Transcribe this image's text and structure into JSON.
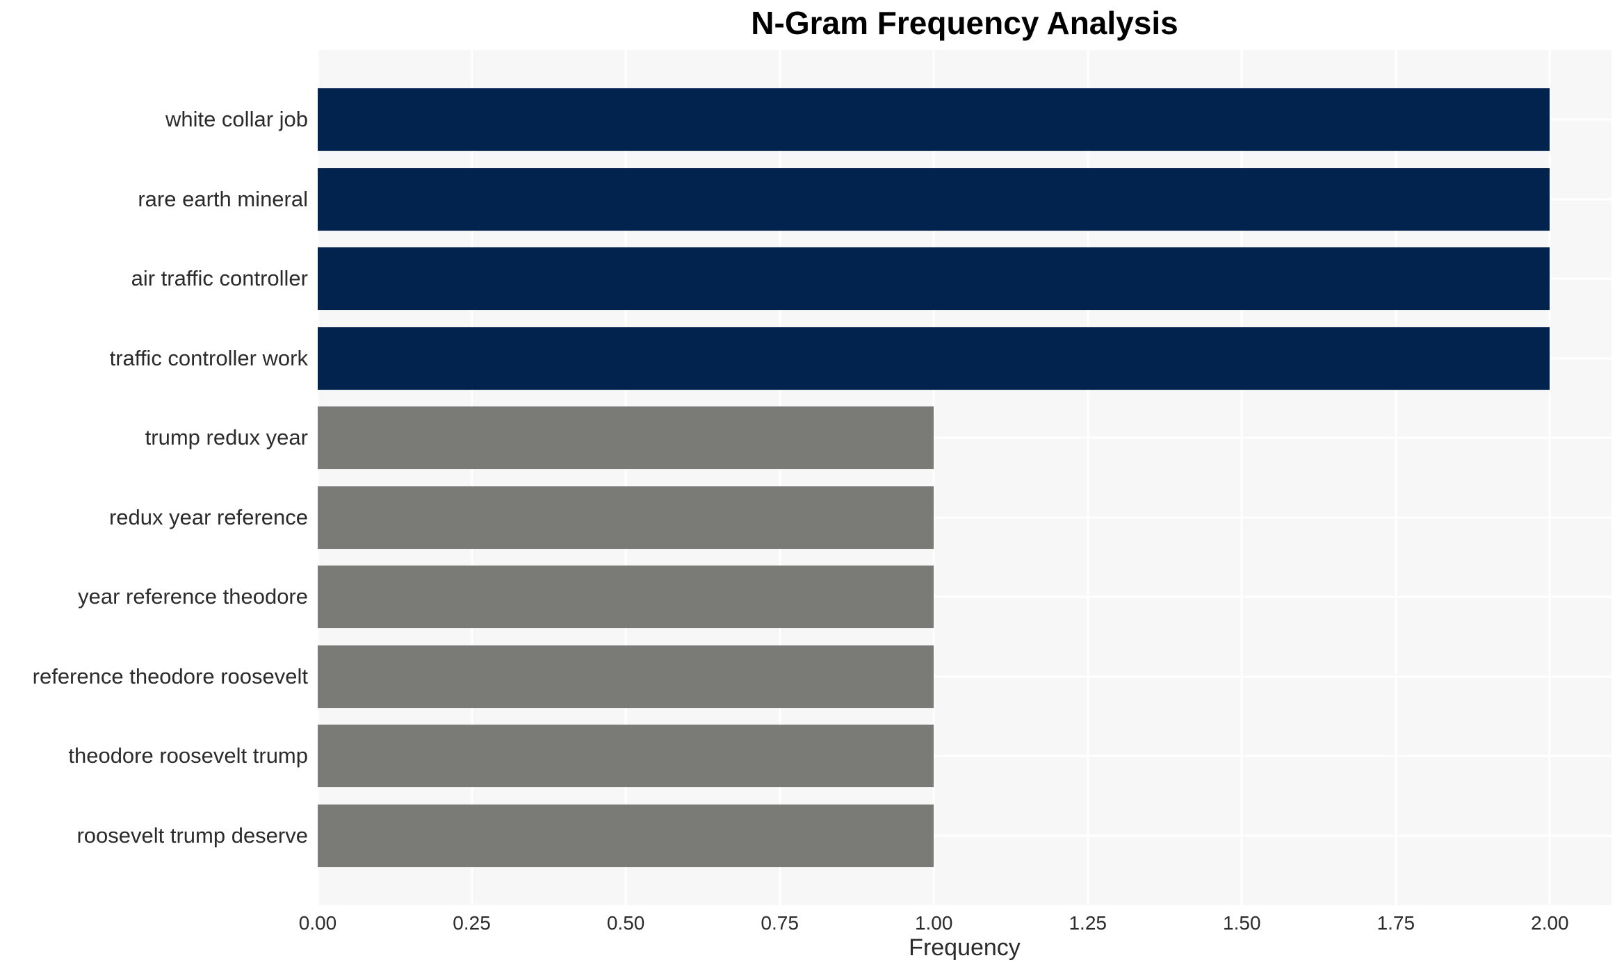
{
  "chart_data": {
    "type": "bar",
    "orientation": "horizontal",
    "title": "N-Gram Frequency Analysis",
    "xlabel": "Frequency",
    "ylabel": "",
    "categories": [
      "white collar job",
      "rare earth mineral",
      "air traffic controller",
      "traffic controller work",
      "trump redux year",
      "redux year reference",
      "year reference theodore",
      "reference theodore roosevelt",
      "theodore roosevelt trump",
      "roosevelt trump deserve"
    ],
    "values": [
      2.0,
      2.0,
      2.0,
      2.0,
      1.0,
      1.0,
      1.0,
      1.0,
      1.0,
      1.0
    ],
    "bar_colors": [
      "#02234d",
      "#02234d",
      "#02234d",
      "#02234d",
      "#7a7a76",
      "#7a7a76",
      "#7a7a76",
      "#7a7a76",
      "#7a7a76",
      "#7a7a76"
    ],
    "xlim": [
      0,
      2.1
    ],
    "xticks": {
      "values": [
        0.0,
        0.25,
        0.5,
        0.75,
        1.0,
        1.25,
        1.5,
        1.75,
        2.0
      ],
      "labels": [
        "0.00",
        "0.25",
        "0.50",
        "0.75",
        "1.00",
        "1.25",
        "1.50",
        "1.75",
        "2.00"
      ]
    },
    "grid": {
      "vertical": true,
      "horizontal": true,
      "color": "#ffffff"
    },
    "legend": null,
    "colors": {
      "high_frequency_bar": "#02234d",
      "low_frequency_bar": "#7a7a76",
      "plot_background": "#f7f7f7",
      "figure_background": "#ffffff",
      "text": "#2b2b2b",
      "title_text": "#000000"
    }
  }
}
